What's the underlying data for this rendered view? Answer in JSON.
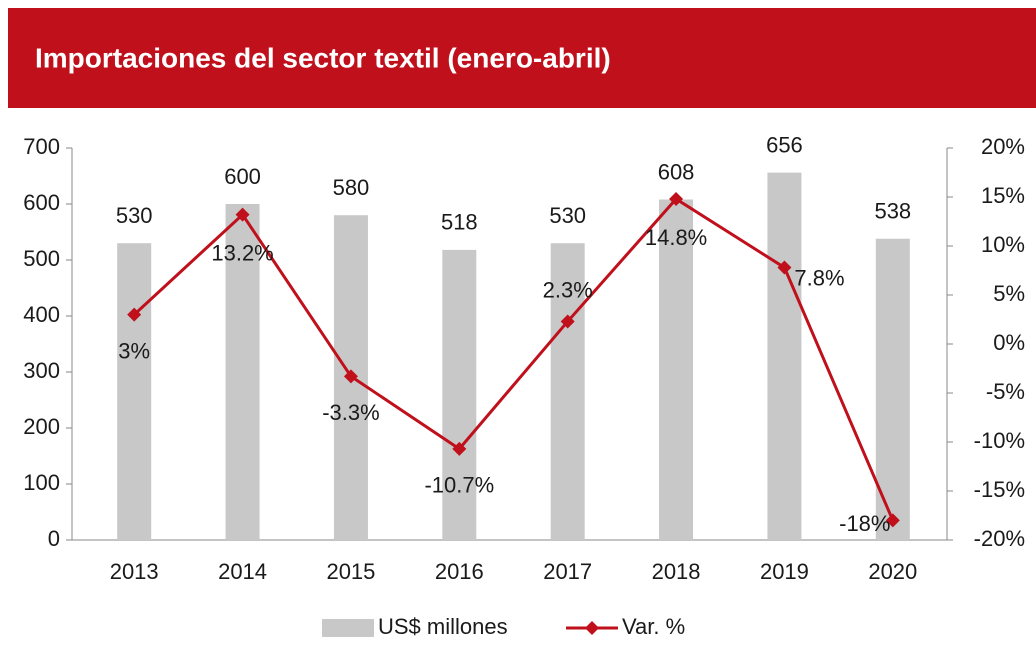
{
  "chart_data": {
    "type": "bar-line",
    "title": "Importaciones del sector textil (enero-abril)",
    "categories": [
      "2013",
      "2014",
      "2015",
      "2016",
      "2017",
      "2018",
      "2019",
      "2020"
    ],
    "series": [
      {
        "name": "US$ millones",
        "color": "#c8c8c8",
        "type": "bar",
        "values": [
          530,
          600,
          580,
          518,
          530,
          608,
          656,
          538
        ]
      },
      {
        "name": "Var. %",
        "color": "#c0101c",
        "type": "line",
        "axis": "y2",
        "values": [
          3,
          13.2,
          -3.3,
          -10.7,
          2.3,
          14.8,
          7.8,
          -18
        ],
        "value_labels": [
          "3%",
          "13.2%",
          "-3.3%",
          "-10.7%",
          "2.3%",
          "14.8%",
          "7.8%",
          "-18%"
        ]
      }
    ],
    "ylim": [
      0,
      700
    ],
    "yticks": [
      0,
      100,
      200,
      300,
      400,
      500,
      600,
      700
    ],
    "y2lim": [
      -20,
      20
    ],
    "y2ticks": [
      {
        "value": -20,
        "label": "-20%"
      },
      {
        "value": -15,
        "label": "-15%"
      },
      {
        "value": -10,
        "label": "-10%"
      },
      {
        "value": -5,
        "label": "-5%"
      },
      {
        "value": 0,
        "label": "0%"
      },
      {
        "value": 5,
        "label": "5%"
      },
      {
        "value": 10,
        "label": "10%"
      },
      {
        "value": 15,
        "label": "15%"
      },
      {
        "value": 20,
        "label": "20%"
      }
    ],
    "legend": "bottom"
  }
}
